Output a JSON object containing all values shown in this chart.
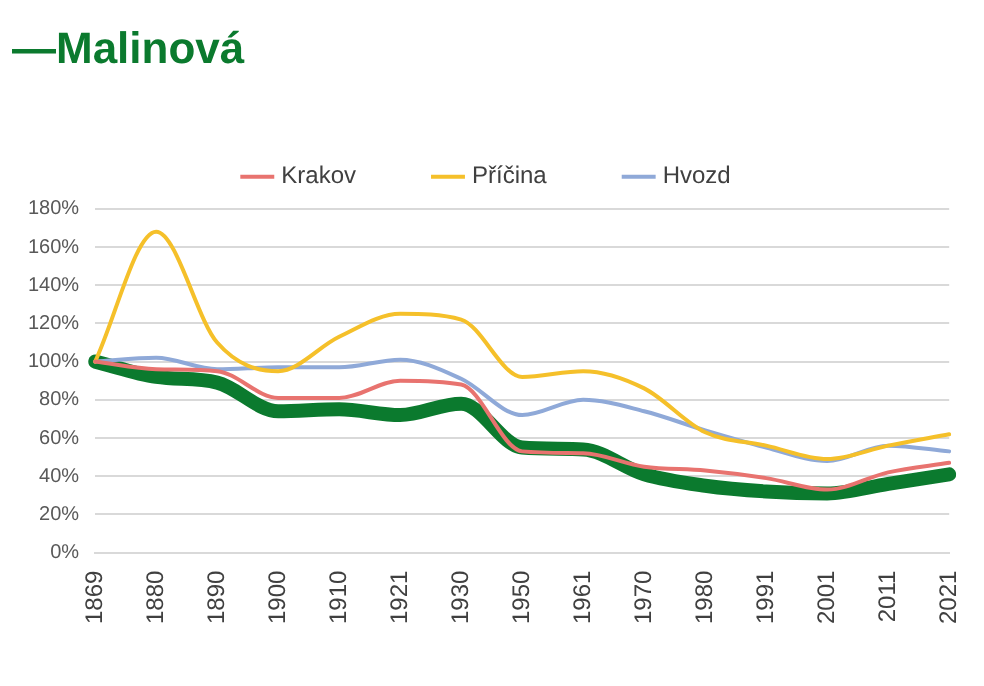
{
  "chart_data": {
    "type": "line",
    "title": "—Malinová",
    "categories": [
      "1869",
      "1880",
      "1890",
      "1900",
      "1910",
      "1921",
      "1930",
      "1950",
      "1961",
      "1970",
      "1980",
      "1991",
      "2001",
      "2011",
      "2021"
    ],
    "series": [
      {
        "color": "#0b7a2e",
        "values": [
          100,
          92,
          89,
          74,
          75,
          72,
          78,
          55,
          54,
          41,
          35,
          32,
          31,
          36,
          41
        ]
      },
      {
        "name": "Krakov",
        "color": "#e8736f",
        "values": [
          100,
          96,
          95,
          81,
          81,
          90,
          88,
          53,
          52,
          45,
          43,
          39,
          33,
          42,
          47
        ]
      },
      {
        "name": "Příčina",
        "color": "#f5c02a",
        "values": [
          100,
          168,
          110,
          95,
          113,
          125,
          122,
          92,
          95,
          86,
          63,
          56,
          49,
          56,
          62
        ]
      },
      {
        "name": "Hvozd",
        "color": "#8fa9d8",
        "values": [
          100,
          102,
          96,
          97,
          97,
          101,
          91,
          72,
          80,
          74,
          64,
          55,
          48,
          56,
          53
        ]
      }
    ],
    "ylim": [
      0,
      180
    ],
    "yticks": [
      {
        "value": 0,
        "label": "0%"
      },
      {
        "value": 20,
        "label": "20%"
      },
      {
        "value": 40,
        "label": "40%"
      },
      {
        "value": 60,
        "label": "60%"
      },
      {
        "value": 80,
        "label": "80%"
      },
      {
        "value": 100,
        "label": "100%"
      },
      {
        "value": 120,
        "label": "120%"
      },
      {
        "value": 140,
        "label": "140%"
      },
      {
        "value": 160,
        "label": "160%"
      },
      {
        "value": 180,
        "label": "180%"
      }
    ],
    "grid": "y",
    "legend": "top",
    "marker": "none",
    "line_style": "solid"
  }
}
